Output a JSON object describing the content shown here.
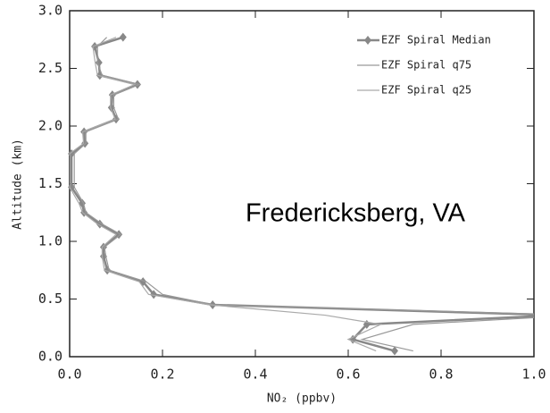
{
  "chart_data": {
    "type": "profile-line",
    "xlabel": "NO₂ (ppbv)",
    "ylabel": "Altitude (km)",
    "annotation": "Fredericksberg, VA",
    "y": [
      2.77,
      2.69,
      2.55,
      2.44,
      2.36,
      2.27,
      2.16,
      2.06,
      1.95,
      1.85,
      1.76,
      1.47,
      1.33,
      1.25,
      1.15,
      1.06,
      0.95,
      0.87,
      0.75,
      0.65,
      0.54,
      0.45,
      0.36,
      0.28,
      0.15,
      0.05
    ],
    "series": [
      {
        "name": "EZF Spiral Median",
        "color": "#888888",
        "marker": true,
        "values": [
          0.115,
          0.054,
          0.063,
          0.065,
          0.146,
          0.092,
          0.09,
          0.1,
          0.031,
          0.033,
          0.004,
          0.004,
          0.027,
          0.031,
          0.065,
          0.106,
          0.073,
          0.073,
          0.081,
          0.158,
          0.181,
          0.308,
          1.05,
          0.64,
          0.61,
          0.7
        ]
      },
      {
        "name": "EZF Spiral q75",
        "color": "#999999",
        "marker": false,
        "values": [
          0.08,
          0.06,
          0.06,
          0.07,
          0.15,
          0.095,
          0.095,
          0.105,
          0.035,
          0.035,
          0.01,
          0.01,
          0.03,
          0.035,
          0.07,
          0.11,
          0.075,
          0.078,
          0.085,
          0.165,
          0.2,
          0.31,
          1.1,
          0.74,
          0.63,
          0.74
        ]
      },
      {
        "name": "EZF Spiral q25",
        "color": "#aaaaaa",
        "marker": false,
        "values": [
          0.1,
          0.05,
          0.055,
          0.06,
          0.14,
          0.088,
          0.088,
          0.098,
          0.028,
          0.03,
          0.0,
          0.0,
          0.02,
          0.028,
          0.06,
          0.1,
          0.07,
          0.07,
          0.075,
          0.15,
          0.17,
          0.3,
          0.55,
          0.67,
          0.6,
          0.66
        ]
      }
    ],
    "xlim": [
      0,
      1
    ],
    "ylim": [
      0,
      3
    ],
    "xticks": [
      {
        "value": 0,
        "label": "0.0"
      },
      0.2,
      0.4,
      0.6,
      0.8,
      {
        "value": 1,
        "label": "1.0"
      }
    ],
    "yticks": [
      {
        "value": 0,
        "label": "0.0"
      },
      0.5,
      {
        "value": 1,
        "label": "1.0"
      },
      1.5,
      {
        "value": 2,
        "label": "2.0"
      },
      2.5,
      {
        "value": 3,
        "label": "3.0"
      }
    ],
    "legend": "upper right"
  }
}
